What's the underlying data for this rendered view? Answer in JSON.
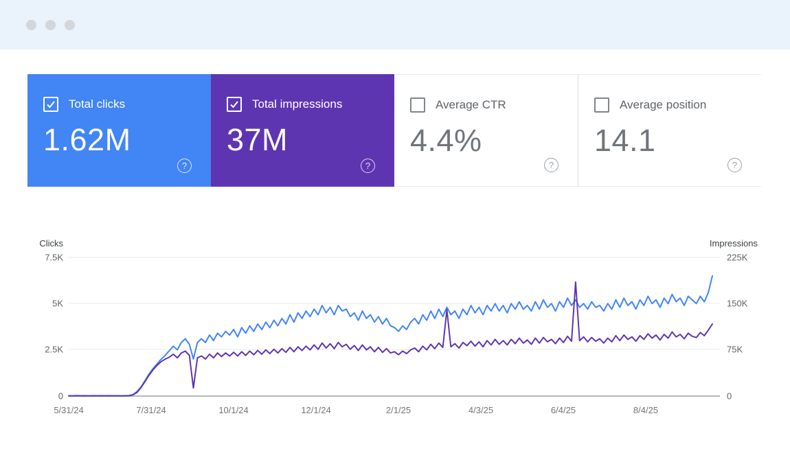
{
  "window": {
    "controls": [
      "window-dot",
      "window-dot",
      "window-dot"
    ]
  },
  "icons": {
    "help": "?",
    "check": "check-mark"
  },
  "colors": {
    "titlebar_bg": "#EAF2FC",
    "clicks_blue": "#4285F4",
    "impressions_purple": "#5E35B1",
    "gridline": "#E8EAED",
    "baseline": "#9AA0A6"
  },
  "cards": [
    {
      "label": "Total clicks",
      "value": "1.62M",
      "checked": true,
      "bg": "#4285F4",
      "text": "#FFFFFF"
    },
    {
      "label": "Total impressions",
      "value": "37M",
      "checked": true,
      "bg": "#5E35B1",
      "text": "#FFFFFF"
    },
    {
      "label": "Average CTR",
      "value": "4.4%",
      "checked": false,
      "bg": "#FFFFFF",
      "text": "#70757A"
    },
    {
      "label": "Average position",
      "value": "14.1",
      "checked": false,
      "bg": "#FFFFFF",
      "text": "#70757A"
    }
  ],
  "chart_data": {
    "type": "line",
    "title": "",
    "left_axis": {
      "title": "Clicks",
      "ticks": [
        "7.5K",
        "5K",
        "2.5K",
        "0"
      ],
      "max": 7500,
      "min": 0
    },
    "right_axis": {
      "title": "Impressions",
      "ticks": [
        "225K",
        "150K",
        "75K",
        "0"
      ],
      "max": 225000,
      "min": 0
    },
    "x_ticks": [
      "5/31/24",
      "7/31/24",
      "10/1/24",
      "12/1/24",
      "2/1/25",
      "4/3/25",
      "6/4/25",
      "8/4/25"
    ],
    "x_start": "5/31/24",
    "x_step_days": 3,
    "grid": true,
    "legend_position": "none",
    "series": [
      {
        "name": "Clicks",
        "axis": "left",
        "color": "#4285F4",
        "values": [
          20,
          15,
          25,
          18,
          22,
          16,
          24,
          19,
          21,
          17,
          23,
          18,
          20,
          16,
          22,
          30,
          80,
          250,
          500,
          850,
          1200,
          1500,
          1750,
          2000,
          2200,
          2450,
          2700,
          2500,
          2900,
          3100,
          2800,
          2000,
          2900,
          3100,
          2900,
          3300,
          3000,
          3400,
          3200,
          3500,
          3300,
          3600,
          3200,
          3700,
          3400,
          3800,
          3500,
          3900,
          3600,
          4000,
          3700,
          4100,
          3800,
          4200,
          3900,
          4400,
          4000,
          4500,
          4200,
          4600,
          4300,
          4700,
          4400,
          4900,
          4500,
          4800,
          4400,
          4900,
          4600,
          4700,
          4300,
          4500,
          4100,
          4600,
          4200,
          4400,
          4000,
          4300,
          3900,
          4200,
          3800,
          3700,
          3500,
          3800,
          3600,
          4000,
          4200,
          3900,
          4400,
          4100,
          4600,
          4200,
          4700,
          4300,
          4800,
          4400,
          4600,
          4200,
          4700,
          4400,
          4900,
          4500,
          4800,
          4400,
          4900,
          4600,
          5000,
          4600,
          4900,
          4500,
          5000,
          4700,
          5100,
          4700,
          4900,
          4600,
          5100,
          4700,
          5200,
          4800,
          5000,
          4600,
          5100,
          4800,
          5300,
          4900,
          5200,
          4800,
          5000,
          4700,
          5100,
          4800,
          4900,
          4600,
          5000,
          4700,
          5200,
          4800,
          5300,
          4900,
          5100,
          4700,
          5200,
          4900,
          5400,
          5000,
          5200,
          4800,
          5300,
          5000,
          5500,
          5100,
          5300,
          4900,
          5400,
          5200,
          5000,
          5400,
          5100,
          5600,
          6500
        ]
      },
      {
        "name": "Impressions",
        "axis": "right",
        "color": "#5E35B1",
        "values": [
          300,
          250,
          350,
          280,
          320,
          260,
          340,
          290,
          310,
          270,
          330,
          280,
          300,
          260,
          320,
          500,
          2000,
          6000,
          14000,
          24000,
          34000,
          43000,
          50000,
          56000,
          60000,
          63000,
          68000,
          62000,
          70000,
          73000,
          66000,
          13000,
          62000,
          65000,
          60000,
          68000,
          62000,
          70000,
          64000,
          70000,
          65000,
          71000,
          65000,
          72000,
          66000,
          73000,
          67000,
          74000,
          68000,
          75000,
          69000,
          76000,
          70000,
          77000,
          71000,
          79000,
          72000,
          80000,
          74000,
          81000,
          75000,
          83000,
          76000,
          86000,
          78000,
          85000,
          77000,
          87000,
          80000,
          84000,
          76000,
          82000,
          74000,
          83000,
          75000,
          80000,
          72000,
          79000,
          71000,
          77000,
          70000,
          72000,
          67000,
          73000,
          69000,
          75000,
          78000,
          72000,
          81000,
          75000,
          84000,
          77000,
          86000,
          79000,
          140000,
          80000,
          85000,
          78000,
          87000,
          82000,
          89000,
          81000,
          88000,
          80000,
          90000,
          83000,
          92000,
          84000,
          90000,
          83000,
          92000,
          85000,
          94000,
          86000,
          91000,
          84000,
          94000,
          86000,
          95000,
          88000,
          92000,
          85000,
          94000,
          87000,
          97000,
          89000,
          185000,
          90000,
          96000,
          88000,
          95000,
          89000,
          93000,
          86000,
          94000,
          88000,
          98000,
          90000,
          99000,
          92000,
          96000,
          89000,
          98000,
          92000,
          101000,
          94000,
          99000,
          91000,
          100000,
          94000,
          104000,
          96000,
          100000,
          93000,
          102000,
          97000,
          95000,
          103000,
          98000,
          107000,
          117000
        ]
      }
    ]
  }
}
